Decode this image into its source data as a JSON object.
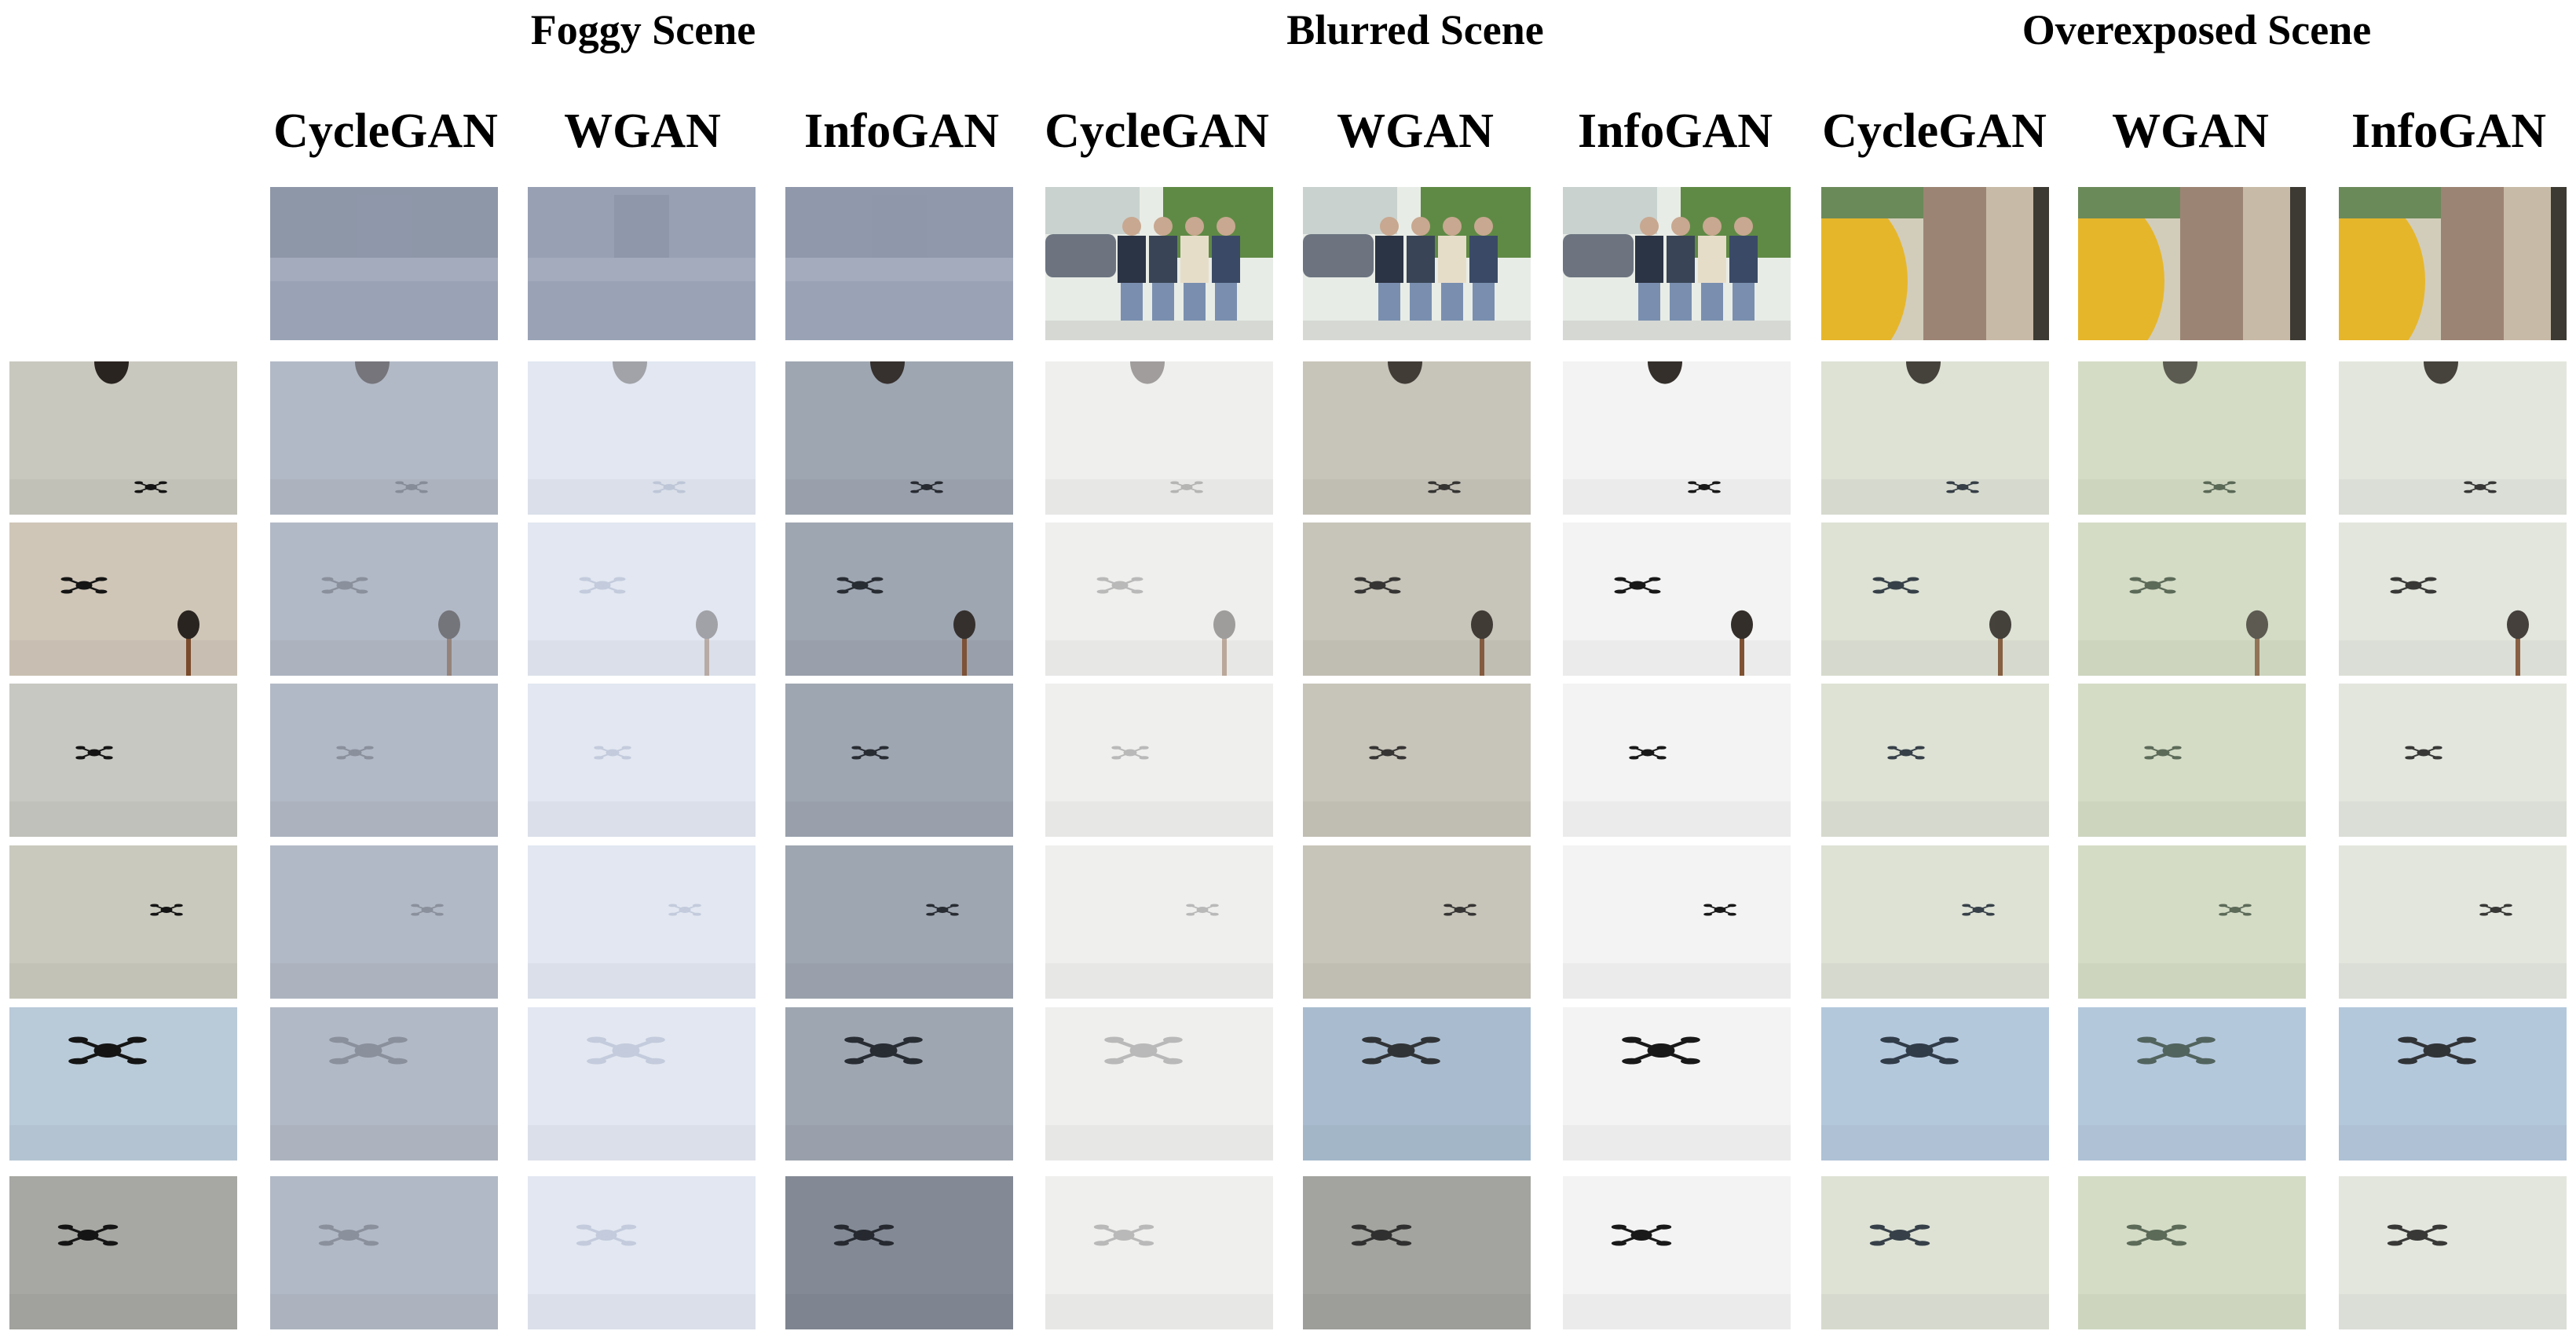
{
  "scenes": [
    {
      "title": "Foggy Scene",
      "methods": [
        "CycleGAN",
        "WGAN",
        "InfoGAN"
      ]
    },
    {
      "title": "Blurred Scene",
      "methods": [
        "CycleGAN",
        "WGAN",
        "InfoGAN"
      ]
    },
    {
      "title": "Overexposed Scene",
      "methods": [
        "CycleGAN",
        "WGAN",
        "InfoGAN"
      ]
    }
  ],
  "reference_images": [
    {
      "name": "foggy-street",
      "columns": 3
    },
    {
      "name": "blurred-pedestrians",
      "columns": 3
    },
    {
      "name": "overexposed-street",
      "columns": 3
    }
  ],
  "drone_rows": 6,
  "colors": {
    "original_bg": [
      "#c9c8be",
      "#cfc6b8",
      "#c7c8c1",
      "#cac9bd",
      "#b9cad8",
      "#a7a7a3"
    ],
    "foggy": {
      "CycleGAN": "#b2b9c6",
      "WGAN": "#e2e7f1",
      "InfoGAN": "#9ea6b1"
    },
    "blurred": {
      "CycleGAN": "#efefee",
      "WGAN": "#c7c4b9",
      "InfoGAN": "#f3f3f3"
    },
    "overexposed": {
      "CycleGAN": "#dde2d5",
      "WGAN": "#d4dcc6",
      "InfoGAN": "#e3e6dd"
    }
  }
}
